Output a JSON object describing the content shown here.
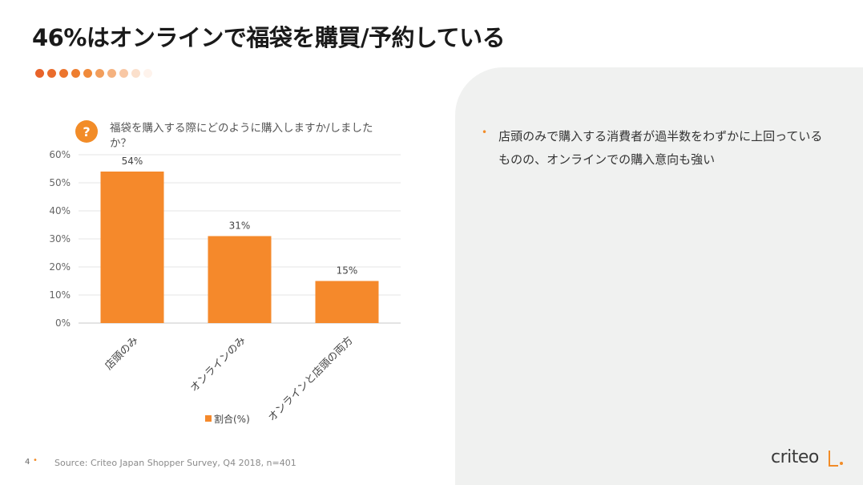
{
  "title": "46%はオンラインで福袋を購買/予約している",
  "progress_dots": [
    "#e8632a",
    "#ea6c2c",
    "#ec752e",
    "#ee7e30",
    "#f08a3a",
    "#f29e5c",
    "#f5b27f",
    "#f8c7a4",
    "#fbe0cc",
    "#fef3ec"
  ],
  "question": {
    "icon_label": "?",
    "text": "福袋を購入する際にどのように購入しますか/しましたか？"
  },
  "chart_data": {
    "type": "bar",
    "categories": [
      "店頭のみ",
      "オンラインのみ",
      "オンラインと店頭の両方"
    ],
    "series": [
      {
        "name": "割合(%)",
        "values": [
          54,
          31,
          15
        ],
        "color": "#f5892b"
      }
    ],
    "data_labels": [
      "54%",
      "31%",
      "15%"
    ],
    "yticks": [
      "0%",
      "10%",
      "20%",
      "30%",
      "40%",
      "50%",
      "60%"
    ],
    "ylim": [
      0,
      60
    ],
    "grid": true,
    "legend": "bottom"
  },
  "insight": {
    "bullet": "•",
    "text": "店頭のみで購入する消費者が過半数をわずかに上回っているものの、オンラインでの購入意向も強い"
  },
  "footer": {
    "page_number": "4",
    "dot": "•",
    "source": "Source: Criteo Japan Shopper Survey, Q4 2018, n=401"
  },
  "logo": {
    "text": "criteo",
    "accent": "#f28c28"
  }
}
